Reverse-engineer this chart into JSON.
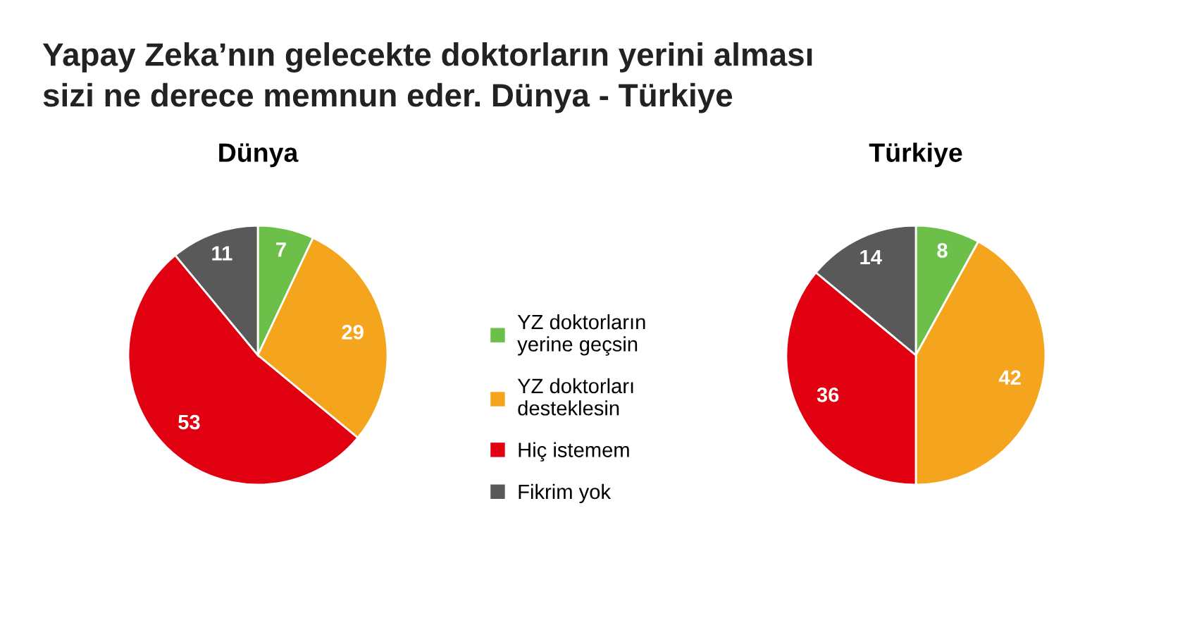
{
  "chart_data": [
    {
      "type": "other",
      "title": "Yapay Zeka’nın gelecekte doktorların yerini alması\nsizi ne derece memnun eder. Dünya - Türkiye"
    },
    {
      "type": "pie",
      "title": "Dünya",
      "categories": [
        "YZ doktorların\nyerine geçsin",
        "YZ doktorları\ndesteklesin",
        "Hiç istemem",
        "Fikrim yok"
      ],
      "values": [
        7,
        29,
        53,
        11
      ],
      "colors": [
        "#6cc04a",
        "#f5a51d",
        "#e0000f",
        "#595959"
      ],
      "data_labels": true,
      "legend": "right"
    },
    {
      "type": "pie",
      "title": "Türkiye",
      "categories": [
        null,
        null,
        null,
        null
      ],
      "values": [
        8,
        42,
        36,
        14
      ],
      "colors": [
        "#6cc04a",
        "#f5a51d",
        "#e0000f",
        "#595959"
      ],
      "data_labels": true
    }
  ]
}
